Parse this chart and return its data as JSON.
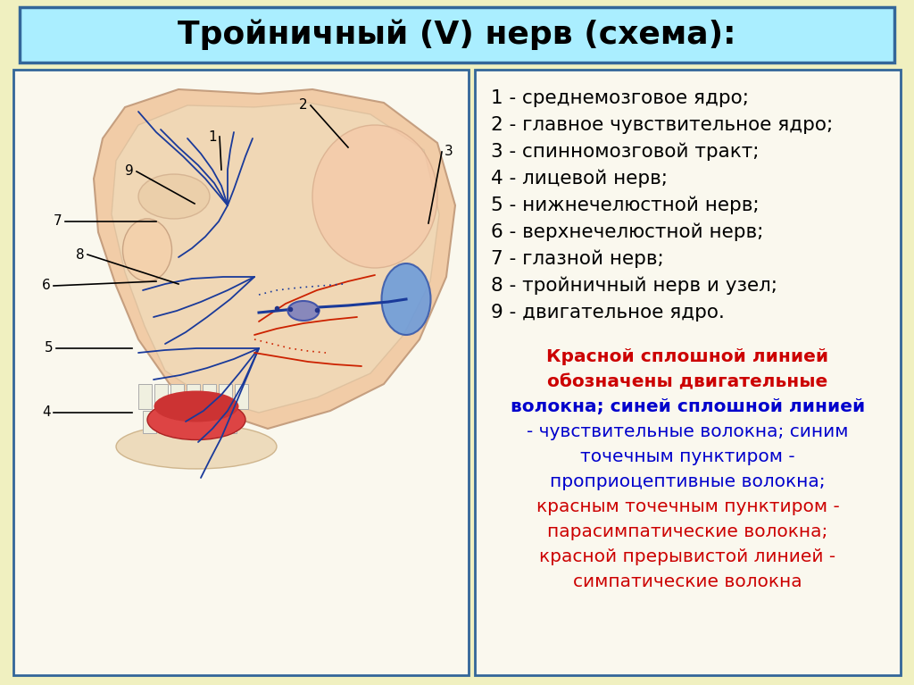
{
  "title": "Тройничный (V) нерв (схема):",
  "title_fontsize": 26,
  "title_bg_color": "#aaeeff",
  "title_border_color": "#336699",
  "bg_color": "#f0f0c0",
  "panel_border_color": "#336699",
  "legend_items": [
    "1 - среднемозговое ядро;",
    "2 - главное чувствительное ядро;",
    "3 - спинномозговой тракт;",
    "4 - лицевой нерв;",
    "5 - нижнечелюстной нерв;",
    "6 - верхнечелюстной нерв;",
    "7 - глазной нерв;",
    "8 - тройничный нерв и узел;",
    "9 - двигательное ядро."
  ],
  "legend_fontsize": 15.5,
  "legend_color": "#000000",
  "description_segments": [
    [
      {
        "text": "Красной сплошной линией\nобозначены двигательные\nволокна; ",
        "color": "#cc0000",
        "bold": true
      },
      {
        "text": "синей сплошной линией\n- чувствительные волокна; синим\nточечным пунктиром -\nпроприоцептивные волокна;\n",
        "color": "#0000cc",
        "bold": false
      },
      {
        "text": "красным точечным пунктиром -\nпарасимпатические волокна;\nкрасной прерывистой линией -\nсимпатические волокна",
        "color": "#cc0000",
        "bold": false
      }
    ]
  ],
  "desc_fontsize": 14.5,
  "image_bg": "#f5e8d8",
  "skull_color": "#e8d0b0",
  "skin_color": "#f0c8a0",
  "nerve_blue": "#1a3a9a",
  "nerve_red": "#cc2200",
  "brain_blue": "#3377cc"
}
